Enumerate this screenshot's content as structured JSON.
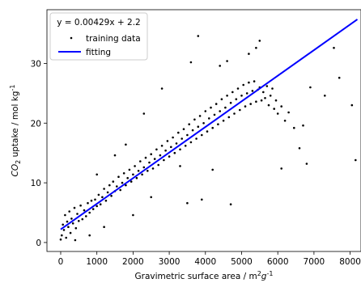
{
  "chart_data": {
    "type": "scatter",
    "title": "",
    "xlabel_parts": [
      "Gravimetric surface area / m",
      "2",
      "g",
      "-1"
    ],
    "ylabel_parts": [
      "CO",
      "2",
      " uptake / mol kg",
      "-1"
    ],
    "xlim": [
      -380,
      8300
    ],
    "ylim": [
      -1.5,
      39
    ],
    "x_ticks": [
      0,
      1000,
      2000,
      3000,
      4000,
      5000,
      6000,
      7000,
      8000
    ],
    "y_ticks": [
      0,
      10,
      20,
      30
    ],
    "grid": false,
    "legend": {
      "placement": "top-left",
      "header": "y = 0.00429x + 2.2",
      "entries": [
        "training data",
        "fitting"
      ]
    },
    "series": [
      {
        "name": "training data",
        "kind": "scatter",
        "color": "#000000",
        "points": [
          [
            0,
            0.5
          ],
          [
            30,
            1.2
          ],
          [
            60,
            3.0
          ],
          [
            90,
            2.1
          ],
          [
            120,
            4.6
          ],
          [
            150,
            0.8
          ],
          [
            180,
            3.5
          ],
          [
            210,
            2.6
          ],
          [
            240,
            5.2
          ],
          [
            270,
            1.6
          ],
          [
            300,
            4.0
          ],
          [
            340,
            3.2
          ],
          [
            380,
            5.8
          ],
          [
            420,
            2.4
          ],
          [
            460,
            4.8
          ],
          [
            500,
            3.6
          ],
          [
            550,
            6.2
          ],
          [
            600,
            3.9
          ],
          [
            650,
            5.4
          ],
          [
            700,
            4.4
          ],
          [
            750,
            6.6
          ],
          [
            800,
            5.0
          ],
          [
            850,
            7.0
          ],
          [
            900,
            5.6
          ],
          [
            950,
            7.2
          ],
          [
            1000,
            6.1
          ],
          [
            1050,
            8.0
          ],
          [
            1100,
            6.4
          ],
          [
            1150,
            7.6
          ],
          [
            1200,
            9.0
          ],
          [
            1250,
            7.0
          ],
          [
            1300,
            8.4
          ],
          [
            1350,
            9.6
          ],
          [
            1400,
            7.8
          ],
          [
            1450,
            10.2
          ],
          [
            1500,
            8.6
          ],
          [
            1550,
            9.4
          ],
          [
            1600,
            11.0
          ],
          [
            1650,
            8.8
          ],
          [
            1700,
            10.0
          ],
          [
            1750,
            11.6
          ],
          [
            1800,
            9.6
          ],
          [
            1850,
            10.8
          ],
          [
            1900,
            12.2
          ],
          [
            1950,
            10.2
          ],
          [
            2000,
            11.4
          ],
          [
            2050,
            12.8
          ],
          [
            2100,
            10.8
          ],
          [
            2150,
            12.0
          ],
          [
            2200,
            13.6
          ],
          [
            2250,
            11.4
          ],
          [
            2300,
            12.6
          ],
          [
            2350,
            14.2
          ],
          [
            2400,
            12.0
          ],
          [
            2450,
            13.4
          ],
          [
            2500,
            14.8
          ],
          [
            2550,
            12.4
          ],
          [
            2600,
            14.0
          ],
          [
            2650,
            15.6
          ],
          [
            2700,
            13.0
          ],
          [
            2750,
            14.6
          ],
          [
            2800,
            16.2
          ],
          [
            2850,
            13.8
          ],
          [
            2900,
            15.4
          ],
          [
            2950,
            17.0
          ],
          [
            3000,
            14.4
          ],
          [
            3050,
            16.0
          ],
          [
            3100,
            17.6
          ],
          [
            3150,
            15.0
          ],
          [
            3200,
            16.6
          ],
          [
            3250,
            18.4
          ],
          [
            3300,
            15.6
          ],
          [
            3350,
            17.4
          ],
          [
            3400,
            19.0
          ],
          [
            3450,
            16.2
          ],
          [
            3500,
            18.0
          ],
          [
            3550,
            19.8
          ],
          [
            3600,
            16.8
          ],
          [
            3650,
            18.8
          ],
          [
            3700,
            20.6
          ],
          [
            3750,
            17.4
          ],
          [
            3800,
            19.4
          ],
          [
            3850,
            21.2
          ],
          [
            3900,
            18.0
          ],
          [
            3950,
            20.0
          ],
          [
            4000,
            22.0
          ],
          [
            4050,
            18.6
          ],
          [
            4100,
            20.8
          ],
          [
            4150,
            22.6
          ],
          [
            4200,
            19.2
          ],
          [
            4250,
            21.4
          ],
          [
            4300,
            23.2
          ],
          [
            4350,
            19.8
          ],
          [
            4400,
            22.0
          ],
          [
            4450,
            24.0
          ],
          [
            4500,
            20.4
          ],
          [
            4550,
            22.6
          ],
          [
            4600,
            24.6
          ],
          [
            4650,
            21.0
          ],
          [
            4700,
            23.4
          ],
          [
            4750,
            25.2
          ],
          [
            4800,
            21.6
          ],
          [
            4850,
            24.0
          ],
          [
            4900,
            25.8
          ],
          [
            4950,
            22.2
          ],
          [
            5000,
            24.6
          ],
          [
            5050,
            26.4
          ],
          [
            5100,
            22.8
          ],
          [
            5150,
            25.0
          ],
          [
            5200,
            26.8
          ],
          [
            5250,
            23.2
          ],
          [
            5300,
            25.4
          ],
          [
            5350,
            27.0
          ],
          [
            5400,
            23.6
          ],
          [
            5450,
            25.6
          ],
          [
            5500,
            26.0
          ],
          [
            5550,
            23.8
          ],
          [
            5600,
            25.2
          ],
          [
            5650,
            24.2
          ],
          [
            5700,
            26.2
          ],
          [
            5750,
            23.0
          ],
          [
            5800,
            24.6
          ],
          [
            5850,
            25.8
          ],
          [
            5900,
            22.4
          ],
          [
            5950,
            23.8
          ],
          [
            6000,
            21.6
          ],
          [
            6100,
            22.8
          ],
          [
            6200,
            20.4
          ],
          [
            6300,
            21.8
          ],
          [
            6450,
            19.2
          ],
          [
            6700,
            19.6
          ],
          [
            6900,
            26.0
          ],
          [
            4200,
            12.2
          ],
          [
            4400,
            29.6
          ],
          [
            4600,
            30.4
          ],
          [
            4700,
            6.4
          ],
          [
            5200,
            31.6
          ],
          [
            5400,
            32.6
          ],
          [
            3800,
            34.6
          ],
          [
            5500,
            33.8
          ],
          [
            6100,
            12.4
          ],
          [
            3300,
            12.8
          ],
          [
            3600,
            30.2
          ],
          [
            2800,
            25.8
          ],
          [
            2500,
            7.6
          ],
          [
            2000,
            4.6
          ],
          [
            3500,
            6.6
          ],
          [
            3900,
            7.2
          ],
          [
            2300,
            21.6
          ],
          [
            1800,
            16.4
          ],
          [
            1500,
            14.6
          ],
          [
            6600,
            15.8
          ],
          [
            6800,
            13.2
          ],
          [
            7300,
            24.6
          ],
          [
            7550,
            32.6
          ],
          [
            7700,
            27.6
          ],
          [
            8050,
            23.0
          ],
          [
            8150,
            13.8
          ],
          [
            1200,
            2.6
          ],
          [
            800,
            1.2
          ],
          [
            400,
            0.4
          ],
          [
            1000,
            11.4
          ]
        ]
      },
      {
        "name": "fitting",
        "kind": "line",
        "color": "#0000ff",
        "equation": {
          "slope": 0.00429,
          "intercept": 2.2
        },
        "x_range": [
          0,
          8200
        ]
      }
    ]
  }
}
